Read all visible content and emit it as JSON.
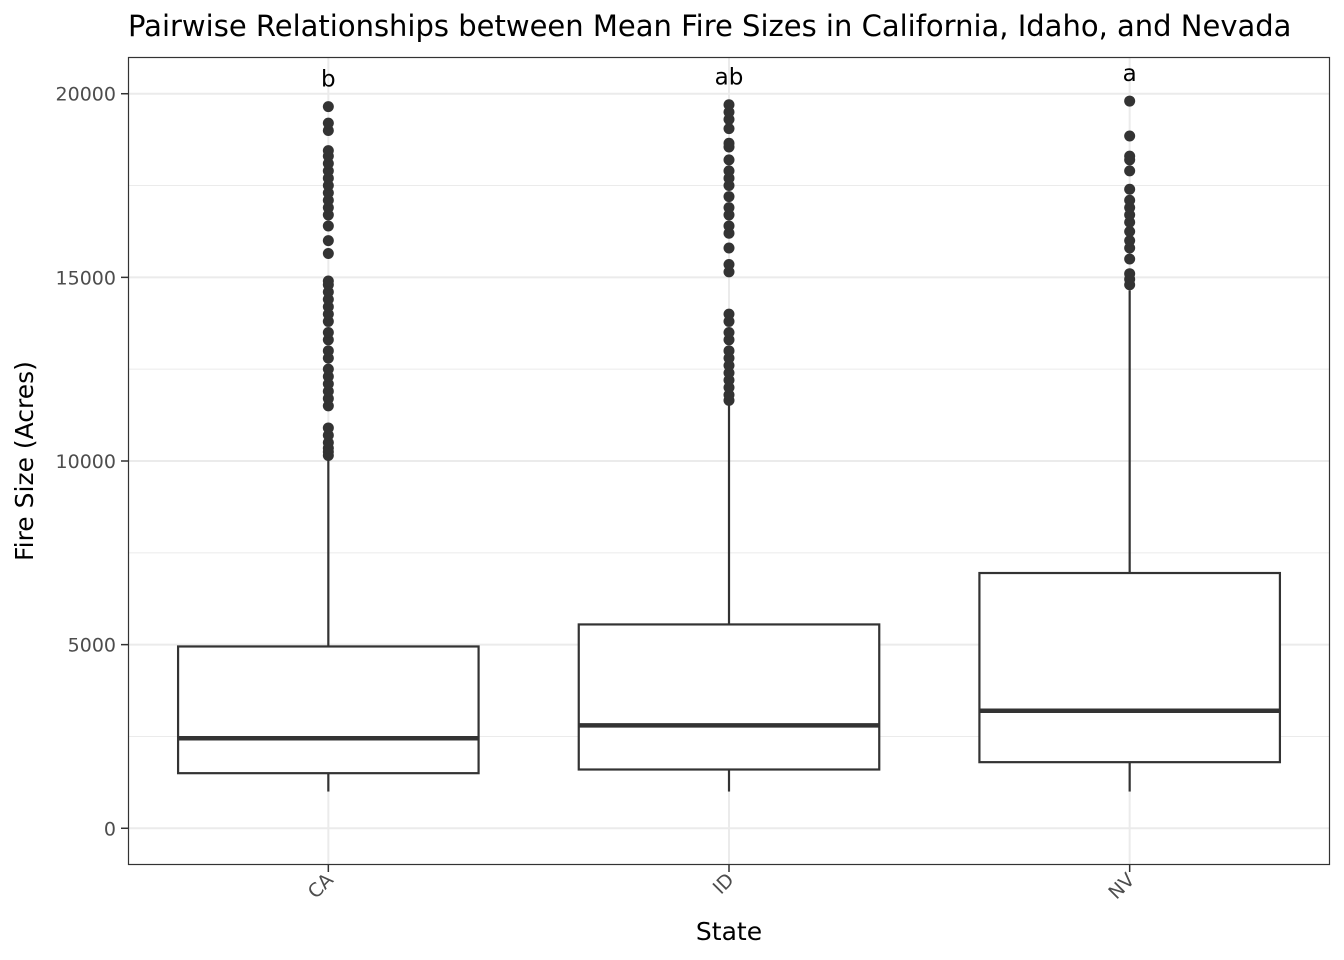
{
  "chart_data": {
    "type": "box",
    "title": "Pairwise Relationships between Mean Fire Sizes in California, Idaho, and Nevada",
    "xlabel": "State",
    "ylabel": "Fire Size (Acres)",
    "categories": [
      "CA",
      "ID",
      "NV"
    ],
    "ylim": [
      -1000,
      21000
    ],
    "yticks": [
      0,
      5000,
      10000,
      15000,
      20000
    ],
    "yticks_labels": [
      "0",
      "5000",
      "10000",
      "15000",
      "20000"
    ],
    "grid": true,
    "boxes": [
      {
        "category": "CA",
        "letter": "b",
        "whisker_low": 1000,
        "q1": 1500,
        "median": 2450,
        "q3": 4950,
        "whisker_high": 10050,
        "outliers": [
          10150,
          10250,
          10350,
          10500,
          10700,
          10900,
          11500,
          11700,
          11900,
          12100,
          12300,
          12500,
          12800,
          13000,
          13300,
          13500,
          13800,
          14000,
          14200,
          14400,
          14600,
          14800,
          14900,
          15650,
          16000,
          16400,
          16700,
          16900,
          17100,
          17300,
          17500,
          17700,
          17900,
          18100,
          18300,
          18450,
          19000,
          19200,
          19650
        ]
      },
      {
        "category": "ID",
        "letter": "ab",
        "whisker_low": 1000,
        "q1": 1600,
        "median": 2800,
        "q3": 5550,
        "whisker_high": 11550,
        "outliers": [
          11650,
          11800,
          12000,
          12200,
          12400,
          12600,
          12800,
          13000,
          13300,
          13500,
          13800,
          14000,
          15150,
          15350,
          15800,
          16200,
          16400,
          16700,
          16900,
          17200,
          17500,
          17700,
          17900,
          18200,
          18550,
          18650,
          19050,
          19300,
          19500,
          19700
        ]
      },
      {
        "category": "NV",
        "letter": "a",
        "whisker_low": 1000,
        "q1": 1800,
        "median": 3200,
        "q3": 6950,
        "whisker_high": 14650,
        "outliers": [
          14800,
          14950,
          15100,
          15500,
          15800,
          16000,
          16250,
          16500,
          16700,
          16900,
          17100,
          17400,
          17900,
          18200,
          18300,
          18850,
          19800
        ]
      }
    ]
  }
}
